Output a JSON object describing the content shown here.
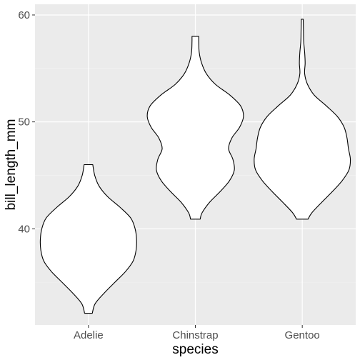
{
  "colors": {
    "panel_background": "#ebebeb",
    "grid_major": "#ffffff",
    "grid_minor": "#f5f5f5",
    "violin_fill": "#ffffff",
    "violin_stroke": "#000000",
    "tick_text": "#4d4d4d"
  },
  "chart_data": {
    "type": "violin",
    "title": "",
    "xlabel": "species",
    "ylabel": "bill_length_mm",
    "categories": [
      "Adelie",
      "Chinstrap",
      "Gentoo"
    ],
    "ylim": [
      31,
      61
    ],
    "y_ticks": [
      40,
      50,
      60
    ],
    "y_tick_labels": [
      "40",
      "50",
      "60"
    ],
    "grid": true,
    "legend": "none",
    "series": [
      {
        "category": "Adelie",
        "min": 32.1,
        "max": 46.0,
        "profile": [
          [
            32.1,
            0.08
          ],
          [
            33.0,
            0.14
          ],
          [
            34.0,
            0.33
          ],
          [
            35.0,
            0.55
          ],
          [
            36.0,
            0.77
          ],
          [
            37.0,
            0.93
          ],
          [
            38.0,
            0.99
          ],
          [
            39.0,
            1.0
          ],
          [
            40.0,
            0.97
          ],
          [
            41.0,
            0.88
          ],
          [
            42.0,
            0.66
          ],
          [
            43.0,
            0.4
          ],
          [
            44.0,
            0.22
          ],
          [
            45.0,
            0.13
          ],
          [
            46.0,
            0.09
          ]
        ]
      },
      {
        "category": "Chinstrap",
        "min": 40.9,
        "max": 58.0,
        "profile": [
          [
            40.9,
            0.1
          ],
          [
            41.5,
            0.14
          ],
          [
            42.5,
            0.3
          ],
          [
            43.5,
            0.52
          ],
          [
            44.5,
            0.71
          ],
          [
            45.5,
            0.81
          ],
          [
            46.5,
            0.78
          ],
          [
            47.5,
            0.69
          ],
          [
            48.5,
            0.76
          ],
          [
            49.5,
            0.92
          ],
          [
            50.5,
            1.0
          ],
          [
            51.5,
            0.94
          ],
          [
            52.5,
            0.72
          ],
          [
            53.5,
            0.42
          ],
          [
            54.5,
            0.23
          ],
          [
            55.5,
            0.13
          ],
          [
            56.5,
            0.08
          ],
          [
            57.5,
            0.07
          ],
          [
            58.0,
            0.07
          ]
        ]
      },
      {
        "category": "Gentoo",
        "min": 40.9,
        "max": 59.6,
        "profile": [
          [
            40.9,
            0.12
          ],
          [
            41.5,
            0.2
          ],
          [
            42.5,
            0.41
          ],
          [
            43.5,
            0.63
          ],
          [
            44.5,
            0.83
          ],
          [
            45.5,
            0.97
          ],
          [
            46.5,
            1.0
          ],
          [
            47.5,
            0.96
          ],
          [
            48.5,
            0.93
          ],
          [
            49.5,
            0.87
          ],
          [
            50.5,
            0.73
          ],
          [
            51.5,
            0.5
          ],
          [
            52.5,
            0.25
          ],
          [
            53.5,
            0.11
          ],
          [
            54.5,
            0.05
          ],
          [
            55.5,
            0.06
          ],
          [
            56.5,
            0.05
          ],
          [
            57.5,
            0.03
          ],
          [
            58.5,
            0.025
          ],
          [
            59.6,
            0.02
          ]
        ]
      }
    ]
  }
}
